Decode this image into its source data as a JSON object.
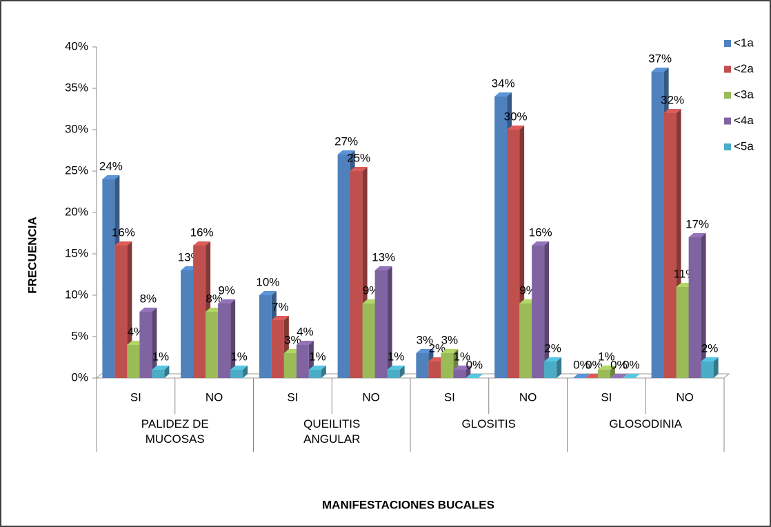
{
  "chart_data": {
    "type": "bar3d",
    "y_label": "FRECUENCIA",
    "x_label": "MANIFESTACIONES BUCALES",
    "categories": [
      "SI",
      "NO",
      "SI",
      "NO",
      "SI",
      "NO",
      "SI",
      "NO"
    ],
    "groups": [
      "PALIDEZ DE MUCOSAS",
      "QUEILITIS ANGULAR",
      "GLOSITIS",
      "GLOSODINIA"
    ],
    "series": [
      {
        "name": "<1a",
        "color": "#4f81bd",
        "values": [
          24,
          13,
          10,
          27,
          3,
          34,
          0,
          37
        ],
        "value_labels": [
          "24%",
          "13%",
          "10%",
          "27%",
          "3%",
          "34%",
          "0%",
          "37%"
        ]
      },
      {
        "name": "<2a",
        "color": "#c0504d",
        "values": [
          16,
          16,
          7,
          25,
          2,
          30,
          0,
          32
        ],
        "value_labels": [
          "16%",
          "16%",
          "7%",
          "25%",
          "2%",
          "30%",
          "0%",
          "32%"
        ]
      },
      {
        "name": "<3a",
        "color": "#9bbb59",
        "values": [
          4,
          8,
          3,
          9,
          3,
          9,
          1,
          11
        ],
        "value_labels": [
          "4%",
          "8%",
          "3%",
          "9%",
          "3%",
          "9%",
          "1%",
          "11%"
        ]
      },
      {
        "name": "<4a",
        "color": "#8064a2",
        "values": [
          8,
          9,
          4,
          13,
          1,
          16,
          0,
          17
        ],
        "value_labels": [
          "8%",
          "9%",
          "4%",
          "13%",
          "1%",
          "16%",
          "0%",
          "17%"
        ]
      },
      {
        "name": "<5a",
        "color": "#4bacc6",
        "values": [
          1,
          1,
          1,
          1,
          0,
          2,
          0,
          2
        ],
        "value_labels": [
          "1%",
          "1%",
          "1%",
          "1%",
          "0%",
          "2%",
          "0%",
          "2%"
        ]
      }
    ],
    "ylim": [
      0,
      40
    ],
    "yticks": [
      {
        "value": 0,
        "label": "0%"
      },
      {
        "value": 5,
        "label": "5%"
      },
      {
        "value": 10,
        "label": "10%"
      },
      {
        "value": 15,
        "label": "15%"
      },
      {
        "value": 20,
        "label": "20%"
      },
      {
        "value": 25,
        "label": "25%"
      },
      {
        "value": 30,
        "label": "30%"
      },
      {
        "value": 35,
        "label": "35%"
      },
      {
        "value": 40,
        "label": "40%"
      }
    ],
    "legend": "top-right",
    "grid": false
  }
}
